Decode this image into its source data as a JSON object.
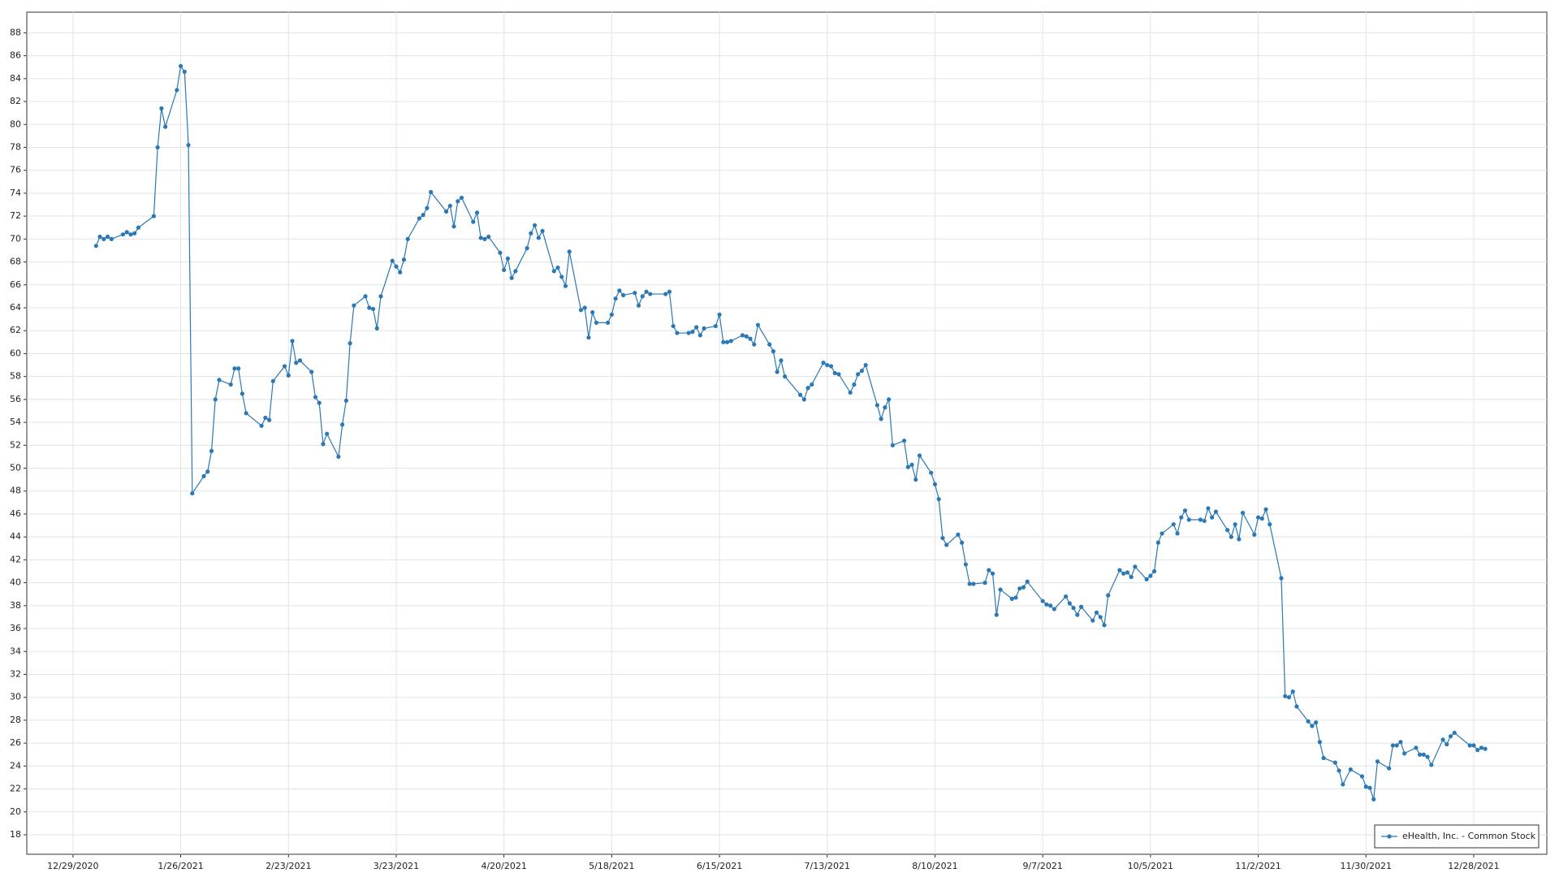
{
  "chart_data": {
    "type": "line",
    "x": [
      "1/4/2021",
      "1/5/2021",
      "1/6/2021",
      "1/7/2021",
      "1/8/2021",
      "1/11/2021",
      "1/12/2021",
      "1/13/2021",
      "1/14/2021",
      "1/15/2021",
      "1/19/2021",
      "1/20/2021",
      "1/21/2021",
      "1/22/2021",
      "1/25/2021",
      "1/26/2021",
      "1/27/2021",
      "1/28/2021",
      "1/29/2021",
      "2/1/2021",
      "2/2/2021",
      "2/3/2021",
      "2/4/2021",
      "2/5/2021",
      "2/8/2021",
      "2/9/2021",
      "2/10/2021",
      "2/11/2021",
      "2/12/2021",
      "2/16/2021",
      "2/17/2021",
      "2/18/2021",
      "2/19/2021",
      "2/22/2021",
      "2/23/2021",
      "2/24/2021",
      "2/25/2021",
      "2/26/2021",
      "3/1/2021",
      "3/2/2021",
      "3/3/2021",
      "3/4/2021",
      "3/5/2021",
      "3/8/2021",
      "3/9/2021",
      "3/10/2021",
      "3/11/2021",
      "3/12/2021",
      "3/15/2021",
      "3/16/2021",
      "3/17/2021",
      "3/18/2021",
      "3/19/2021",
      "3/22/2021",
      "3/23/2021",
      "3/24/2021",
      "3/25/2021",
      "3/26/2021",
      "3/29/2021",
      "3/30/2021",
      "3/31/2021",
      "4/1/2021",
      "4/5/2021",
      "4/6/2021",
      "4/7/2021",
      "4/8/2021",
      "4/9/2021",
      "4/12/2021",
      "4/13/2021",
      "4/14/2021",
      "4/15/2021",
      "4/16/2021",
      "4/19/2021",
      "4/20/2021",
      "4/21/2021",
      "4/22/2021",
      "4/23/2021",
      "4/26/2021",
      "4/27/2021",
      "4/28/2021",
      "4/29/2021",
      "4/30/2021",
      "5/3/2021",
      "5/4/2021",
      "5/5/2021",
      "5/6/2021",
      "5/7/2021",
      "5/10/2021",
      "5/11/2021",
      "5/12/2021",
      "5/13/2021",
      "5/14/2021",
      "5/17/2021",
      "5/18/2021",
      "5/19/2021",
      "5/20/2021",
      "5/21/2021",
      "5/24/2021",
      "5/25/2021",
      "5/26/2021",
      "5/27/2021",
      "5/28/2021",
      "6/1/2021",
      "6/2/2021",
      "6/3/2021",
      "6/4/2021",
      "6/7/2021",
      "6/8/2021",
      "6/9/2021",
      "6/10/2021",
      "6/11/2021",
      "6/14/2021",
      "6/15/2021",
      "6/16/2021",
      "6/17/2021",
      "6/18/2021",
      "6/21/2021",
      "6/22/2021",
      "6/23/2021",
      "6/24/2021",
      "6/25/2021",
      "6/28/2021",
      "6/29/2021",
      "6/30/2021",
      "7/1/2021",
      "7/2/2021",
      "7/6/2021",
      "7/7/2021",
      "7/8/2021",
      "7/9/2021",
      "7/12/2021",
      "7/13/2021",
      "7/14/2021",
      "7/15/2021",
      "7/16/2021",
      "7/19/2021",
      "7/20/2021",
      "7/21/2021",
      "7/22/2021",
      "7/23/2021",
      "7/26/2021",
      "7/27/2021",
      "7/28/2021",
      "7/29/2021",
      "7/30/2021",
      "8/2/2021",
      "8/3/2021",
      "8/4/2021",
      "8/5/2021",
      "8/6/2021",
      "8/9/2021",
      "8/10/2021",
      "8/11/2021",
      "8/12/2021",
      "8/13/2021",
      "8/16/2021",
      "8/17/2021",
      "8/18/2021",
      "8/19/2021",
      "8/20/2021",
      "8/23/2021",
      "8/24/2021",
      "8/25/2021",
      "8/26/2021",
      "8/27/2021",
      "8/30/2021",
      "8/31/2021",
      "9/1/2021",
      "9/2/2021",
      "9/3/2021",
      "9/7/2021",
      "9/8/2021",
      "9/9/2021",
      "9/10/2021",
      "9/13/2021",
      "9/14/2021",
      "9/15/2021",
      "9/16/2021",
      "9/17/2021",
      "9/20/2021",
      "9/21/2021",
      "9/22/2021",
      "9/23/2021",
      "9/24/2021",
      "9/27/2021",
      "9/28/2021",
      "9/29/2021",
      "9/30/2021",
      "10/1/2021",
      "10/4/2021",
      "10/5/2021",
      "10/6/2021",
      "10/7/2021",
      "10/8/2021",
      "10/11/2021",
      "10/12/2021",
      "10/13/2021",
      "10/14/2021",
      "10/15/2021",
      "10/18/2021",
      "10/19/2021",
      "10/20/2021",
      "10/21/2021",
      "10/22/2021",
      "10/25/2021",
      "10/26/2021",
      "10/27/2021",
      "10/28/2021",
      "10/29/2021",
      "11/1/2021",
      "11/2/2021",
      "11/3/2021",
      "11/4/2021",
      "11/5/2021",
      "11/8/2021",
      "11/9/2021",
      "11/10/2021",
      "11/11/2021",
      "11/12/2021",
      "11/15/2021",
      "11/16/2021",
      "11/17/2021",
      "11/18/2021",
      "11/19/2021",
      "11/22/2021",
      "11/23/2021",
      "11/24/2021",
      "11/26/2021",
      "11/29/2021",
      "11/30/2021",
      "12/1/2021",
      "12/2/2021",
      "12/3/2021",
      "12/6/2021",
      "12/7/2021",
      "12/8/2021",
      "12/9/2021",
      "12/10/2021",
      "12/13/2021",
      "12/14/2021",
      "12/15/2021",
      "12/16/2021",
      "12/17/2021",
      "12/20/2021",
      "12/21/2021",
      "12/22/2021",
      "12/23/2021",
      "12/27/2021",
      "12/28/2021",
      "12/29/2021",
      "12/30/2021",
      "12/31/2021"
    ],
    "series": [
      {
        "name": "eHealth, Inc. - Common Stock",
        "color": "#2a78b5",
        "values": [
          69.4,
          70.2,
          70.0,
          70.2,
          70.0,
          70.4,
          70.6,
          70.4,
          70.5,
          71.0,
          72.0,
          78.0,
          81.4,
          79.8,
          83.0,
          85.1,
          84.6,
          78.2,
          47.8,
          49.3,
          49.7,
          51.5,
          56.0,
          57.7,
          57.3,
          58.7,
          58.7,
          56.5,
          54.8,
          53.7,
          54.4,
          54.2,
          57.6,
          58.9,
          58.1,
          61.1,
          59.2,
          59.4,
          58.4,
          56.2,
          55.7,
          52.1,
          53.0,
          51.0,
          53.8,
          55.9,
          60.9,
          64.2,
          65.0,
          64.0,
          63.9,
          62.2,
          65.0,
          68.1,
          67.6,
          67.1,
          68.2,
          70.0,
          71.8,
          72.1,
          72.7,
          74.1,
          72.4,
          72.9,
          71.1,
          73.3,
          73.6,
          71.5,
          72.3,
          70.1,
          70.0,
          70.2,
          68.8,
          67.3,
          68.3,
          66.6,
          67.2,
          69.2,
          70.5,
          71.2,
          70.1,
          70.7,
          67.2,
          67.5,
          66.7,
          65.9,
          68.9,
          63.8,
          64.0,
          61.4,
          63.6,
          62.7,
          62.7,
          63.4,
          64.8,
          65.5,
          65.1,
          65.3,
          64.2,
          65.0,
          65.4,
          65.2,
          65.2,
          65.4,
          62.4,
          61.8,
          61.8,
          61.9,
          62.3,
          61.6,
          62.2,
          62.4,
          63.4,
          61.0,
          61.0,
          61.1,
          61.6,
          61.5,
          61.3,
          60.8,
          62.5,
          60.8,
          60.2,
          58.4,
          59.4,
          58.0,
          56.4,
          56.0,
          57.0,
          57.3,
          59.2,
          59.0,
          58.9,
          58.3,
          58.2,
          56.6,
          57.3,
          58.2,
          58.5,
          59.0,
          55.5,
          54.3,
          55.3,
          56.0,
          52.0,
          52.4,
          50.1,
          50.3,
          49.0,
          51.1,
          49.6,
          48.6,
          47.3,
          43.9,
          43.3,
          44.2,
          43.5,
          41.6,
          39.9,
          39.9,
          40.0,
          41.1,
          40.8,
          37.2,
          39.4,
          38.6,
          38.7,
          39.5,
          39.6,
          40.1,
          38.4,
          38.1,
          38.0,
          37.7,
          38.8,
          38.2,
          37.8,
          37.2,
          37.9,
          36.7,
          37.4,
          37.0,
          36.3,
          38.9,
          41.1,
          40.8,
          40.9,
          40.5,
          41.4,
          40.3,
          40.6,
          41.0,
          43.5,
          44.3,
          45.1,
          44.3,
          45.7,
          46.3,
          45.5,
          45.5,
          45.4,
          46.5,
          45.7,
          46.2,
          44.6,
          44.0,
          45.1,
          43.8,
          46.1,
          44.2,
          45.7,
          45.6,
          46.4,
          45.1,
          40.4,
          30.1,
          30.0,
          30.5,
          29.2,
          27.9,
          27.5,
          27.8,
          26.1,
          24.7,
          24.3,
          23.6,
          22.4,
          23.7,
          23.1,
          22.2,
          22.1,
          21.1,
          24.4,
          23.8,
          25.8,
          25.8,
          26.1,
          25.1,
          25.6,
          25.0,
          25.0,
          24.8,
          24.1,
          26.3,
          25.9,
          26.6,
          26.9,
          25.8,
          25.8,
          25.4,
          25.6,
          25.5
        ]
      }
    ],
    "xlim": [
      "12/17/2020",
      "1/16/2022"
    ],
    "xticks": [
      "12/29/2020",
      "1/26/2021",
      "2/23/2021",
      "3/23/2021",
      "4/20/2021",
      "5/18/2021",
      "6/15/2021",
      "7/13/2021",
      "8/10/2021",
      "9/7/2021",
      "10/5/2021",
      "11/2/2021",
      "11/30/2021",
      "12/28/2021"
    ],
    "ylim": [
      16.3,
      89.8
    ],
    "yticks": [
      18,
      20,
      22,
      24,
      26,
      28,
      30,
      32,
      34,
      36,
      38,
      40,
      42,
      44,
      46,
      48,
      50,
      52,
      54,
      56,
      58,
      60,
      62,
      64,
      66,
      68,
      70,
      72,
      74,
      76,
      78,
      80,
      82,
      84,
      86,
      88
    ],
    "grid": true,
    "legend": "lower right"
  }
}
